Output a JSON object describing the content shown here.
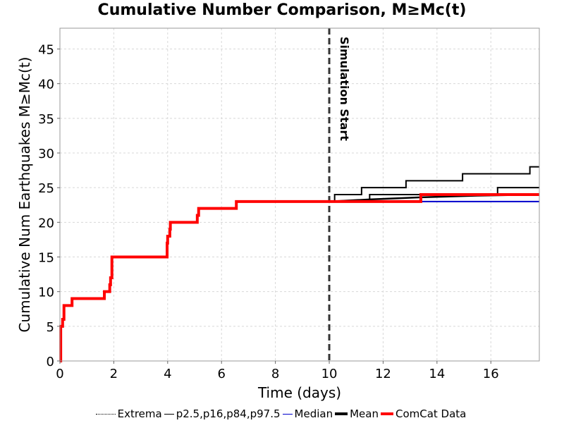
{
  "chart_data": {
    "type": "line",
    "title": "Cumulative Number Comparison, M≥Mc(t)",
    "xlabel": "Time (days)",
    "ylabel": "Cumulative Num Earthquakes M≥Mc(t)",
    "xlim": [
      0,
      17.8
    ],
    "ylim": [
      0,
      48
    ],
    "xticks": [
      0,
      2,
      4,
      6,
      8,
      10,
      12,
      14,
      16
    ],
    "yticks": [
      0,
      5,
      10,
      15,
      20,
      25,
      30,
      35,
      40,
      45
    ],
    "grid": true,
    "annotations": [
      {
        "text": "Simulation Start",
        "x": 10
      }
    ],
    "legend": {
      "position": "bottom",
      "entries": [
        {
          "label": "Extrema",
          "color": "#000000",
          "style": "dotted"
        },
        {
          "label": "p2.5,p16,p84,p97.5",
          "color": "#000000",
          "style": "solid"
        },
        {
          "label": "Median",
          "color": "#0000cc",
          "style": "solid"
        },
        {
          "label": "Mean",
          "color": "#000000",
          "style": "thick"
        },
        {
          "label": "ComCat Data",
          "color": "#ff0000",
          "style": "thick"
        }
      ]
    },
    "series": [
      {
        "name": "ComCat Data",
        "color": "#ff0000",
        "step": true,
        "x": [
          0,
          0.03,
          0.1,
          0.15,
          0.4,
          0.45,
          1.6,
          1.65,
          1.75,
          1.85,
          1.88,
          1.93,
          3.95,
          3.98,
          4.0,
          4.05,
          4.08,
          4.1,
          4.15,
          5.1,
          5.15,
          5.2,
          6.5,
          6.55,
          13.4,
          17.8
        ],
        "y": [
          0,
          5,
          6,
          8,
          8,
          9,
          9,
          10,
          10,
          11,
          12,
          15,
          15,
          17,
          18,
          18,
          19,
          20,
          20,
          21,
          22,
          22,
          22,
          23,
          24,
          24
        ]
      },
      {
        "name": "p97.5",
        "color": "#000000",
        "step": true,
        "x": [
          10,
          10.2,
          11.2,
          12.85,
          14.95,
          17.45,
          17.8
        ],
        "y": [
          23,
          24,
          25,
          26,
          27,
          28,
          28
        ]
      },
      {
        "name": "p84",
        "color": "#000000",
        "step": true,
        "x": [
          10,
          11.5,
          16.25,
          17.8
        ],
        "y": [
          23,
          24,
          25,
          25
        ]
      },
      {
        "name": "Mean",
        "color": "#000000",
        "step": false,
        "x": [
          10,
          11.5,
          13.4,
          15.5,
          17.8
        ],
        "y": [
          23,
          23.3,
          23.6,
          23.85,
          24
        ]
      },
      {
        "name": "Median",
        "color": "#0000cc",
        "step": true,
        "x": [
          10,
          17.8
        ],
        "y": [
          23,
          23
        ]
      }
    ]
  }
}
